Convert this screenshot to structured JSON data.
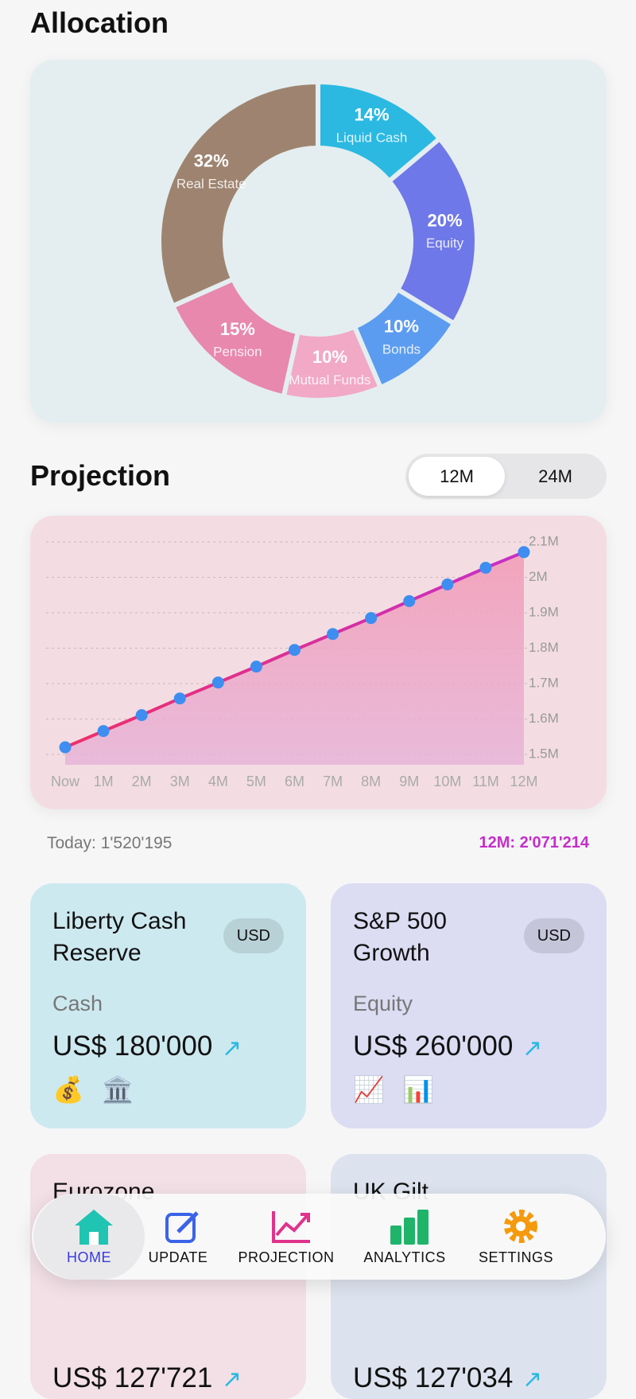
{
  "header": {
    "title": "Allocation"
  },
  "chart_data": [
    {
      "type": "pie",
      "categories": [
        "Liquid Cash",
        "Equity",
        "Bonds",
        "Mutual Funds",
        "Pension",
        "Real Estate"
      ],
      "values": [
        14,
        20,
        10,
        10,
        15,
        32
      ],
      "value_labels": [
        "14%",
        "20%",
        "10%",
        "10%",
        "15%",
        "32%"
      ],
      "colors": [
        "#2bb9e2",
        "#6f78e8",
        "#5b9cf0",
        "#f1a9c6",
        "#e888ad",
        "#9e8470"
      ]
    },
    {
      "type": "line",
      "title": "Projection",
      "categories": [
        "Now",
        "1M",
        "2M",
        "3M",
        "4M",
        "5M",
        "6M",
        "7M",
        "8M",
        "9M",
        "10M",
        "11M",
        "12M"
      ],
      "values": [
        1520195,
        1566000,
        1611000,
        1658000,
        1703000,
        1748000,
        1795000,
        1840000,
        1885000,
        1933000,
        1980000,
        2027000,
        2071214
      ],
      "color": "#e0338a",
      "marker_color": "#3d8ef0",
      "ylim": [
        1465000,
        2120000
      ],
      "yticks": [
        {
          "value": 1500000,
          "label": "1.5M"
        },
        {
          "value": 1600000,
          "label": "1.6M"
        },
        {
          "value": 1700000,
          "label": "1.7M"
        },
        {
          "value": 1800000,
          "label": "1.8M"
        },
        {
          "value": 1900000,
          "label": "1.9M"
        },
        {
          "value": 2000000,
          "label": "2M"
        },
        {
          "value": 2100000,
          "label": "2.1M"
        }
      ],
      "grid": true
    }
  ],
  "projection": {
    "toggle": [
      "12M",
      "24M"
    ],
    "selected_index": 0,
    "today": "Today: 1'520'195",
    "target": "12M: 2'071'214"
  },
  "cards": [
    {
      "name": "Liberty Cash Reserve",
      "currency": "USD",
      "category": "Cash",
      "amount": "US$ 180'000",
      "icons": [
        "💰",
        "🏛️"
      ],
      "color": "#cde9f0"
    },
    {
      "name": "S&P 500 Growth",
      "currency": "USD",
      "category": "Equity",
      "amount": "US$ 260'000",
      "icons": [
        "📈",
        "📊"
      ],
      "color": "#dcdcf3"
    },
    {
      "name": "Eurozone",
      "amount": "US$ 127'721",
      "color": "#f2e0e6"
    },
    {
      "name": "UK Gilt",
      "amount": "US$ 127'034",
      "color": "#dde3ee"
    }
  ],
  "nav": {
    "items": [
      "HOME",
      "UPDATE",
      "PROJECTION",
      "ANALYTICS",
      "SETTINGS"
    ],
    "active_index": 0
  }
}
